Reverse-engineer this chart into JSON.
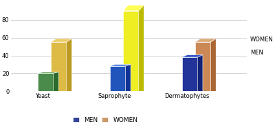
{
  "categories": [
    "Yeast",
    "Saprophyte",
    "Dermatophytes"
  ],
  "men_values": [
    20,
    28,
    38
  ],
  "women_values": [
    55,
    90,
    55
  ],
  "men_colors": {
    "Yeast": {
      "face": "#4a8a4a",
      "top": "#6aaa5a",
      "side": "#2a6a2a"
    },
    "Saprophyte": {
      "face": "#2255bb",
      "top": "#4477dd",
      "side": "#113399"
    },
    "Dermatophytes": {
      "face": "#223399",
      "top": "#3355cc",
      "side": "#112277"
    }
  },
  "women_colors": {
    "Yeast": {
      "face": "#ddbb44",
      "top": "#eecc66",
      "side": "#bb9922"
    },
    "Saprophyte": {
      "face": "#eeee22",
      "top": "#ffff55",
      "side": "#bbbb00"
    },
    "Dermatophytes": {
      "face": "#cc8855",
      "top": "#ddaa77",
      "side": "#aa6633"
    }
  },
  "legend_men_color": "#334499",
  "legend_women_color": "#cc9966",
  "ylim": [
    0,
    100
  ],
  "yticks": [
    0,
    20,
    40,
    60,
    80
  ],
  "background_color": "#ffffff",
  "grid_color": "#cccccc"
}
